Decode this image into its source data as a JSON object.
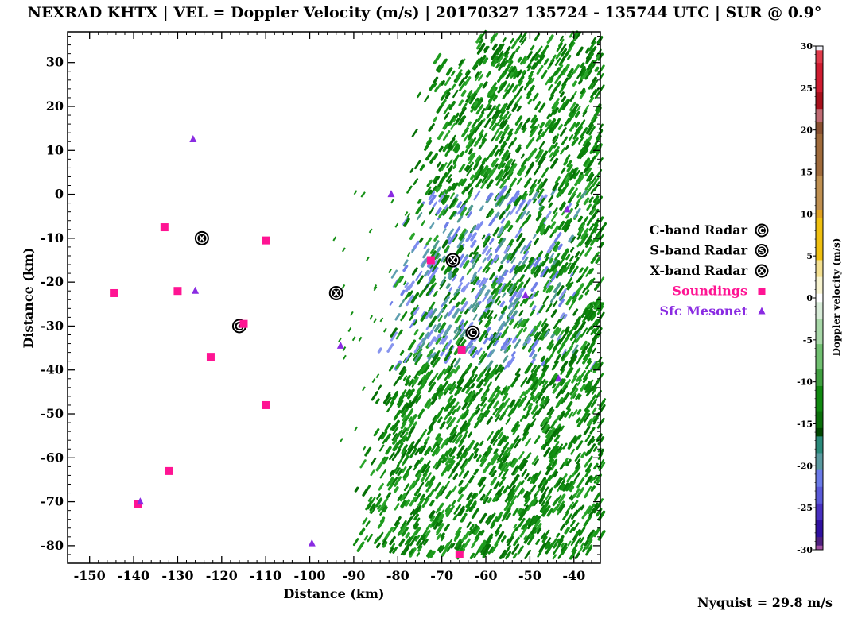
{
  "chart_data": {
    "type": "scatter",
    "title": "NEXRAD KHTX | VEL = Doppler Velocity (m/s) | 20170327 135724 - 135744 UTC | SUR @ 0.9°",
    "xlabel": "Distance (km)",
    "ylabel": "Distance (km)",
    "xlim": [
      -155,
      -34
    ],
    "ylim": [
      -84,
      37
    ],
    "xticks": [
      -150,
      -140,
      -130,
      -120,
      -110,
      -100,
      -90,
      -80,
      -70,
      -60,
      -50,
      -40
    ],
    "yticks": [
      30,
      20,
      10,
      0,
      -10,
      -20,
      -30,
      -40,
      -50,
      -60,
      -70,
      -80
    ],
    "field": "Doppler velocity shading (negative values, approx. -25 to -10 m/s) east of about x = -90 km",
    "series": [
      {
        "name": "C-band Radar",
        "color": "#000000",
        "marker": "circle-C",
        "points": [
          [
            -116,
            -30
          ],
          [
            -63,
            -31.5
          ]
        ]
      },
      {
        "name": "S-band Radar",
        "color": "#000000",
        "marker": "circle-S",
        "points": []
      },
      {
        "name": "X-band Radar",
        "color": "#000000",
        "marker": "circle-X",
        "points": [
          [
            -124.5,
            -10
          ],
          [
            -94,
            -22.5
          ],
          [
            -67.5,
            -15
          ]
        ]
      },
      {
        "name": "Soundings",
        "color": "#ff1493",
        "marker": "square",
        "points": [
          [
            -133,
            -7.5
          ],
          [
            -110,
            -10.5
          ],
          [
            -144.5,
            -22.5
          ],
          [
            -130,
            -22
          ],
          [
            -115,
            -29.5
          ],
          [
            -122.5,
            -37
          ],
          [
            -110,
            -48
          ],
          [
            -132,
            -63
          ],
          [
            -139,
            -70.5
          ],
          [
            -72.5,
            -15
          ],
          [
            -65.5,
            -35.5
          ],
          [
            -66,
            -82
          ]
        ]
      },
      {
        "name": "Sfc Mesonet",
        "color": "#8a2be2",
        "marker": "triangle",
        "points": [
          [
            -126.5,
            12.5
          ],
          [
            -126,
            -22
          ],
          [
            -93,
            -34.5
          ],
          [
            -81.5,
            0
          ],
          [
            -138.5,
            -70
          ],
          [
            -99.5,
            -79.5
          ],
          [
            -41.5,
            -3.5
          ],
          [
            -51,
            -23
          ],
          [
            -43.5,
            -42
          ]
        ]
      }
    ],
    "colorbar": {
      "label": "Doppler velocity (m/s)",
      "min": -30,
      "max": 30,
      "ticks": [
        30,
        25,
        20,
        15,
        10,
        5,
        0,
        -5,
        -10,
        -15,
        -20,
        -25,
        -30
      ]
    },
    "legend_position": "right",
    "annotation": "Nyquist = 29.8 m/s"
  }
}
